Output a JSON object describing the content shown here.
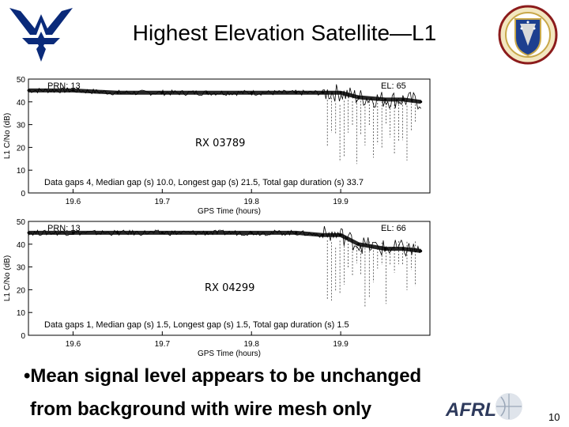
{
  "slide": {
    "title": "Highest Elevation Satellite—L1",
    "bullet_line1": "•Mean signal level appears to be unchanged",
    "bullet_line2": "from background with wire mesh only",
    "page_number": "10",
    "afrl_text": "AFRL"
  },
  "chart_data": [
    {
      "type": "line",
      "receiver_label": "RX 03789",
      "prn_label": "PRN: 13",
      "el_label": "EL: 65",
      "xlabel": "GPS Time (hours)",
      "ylabel": "L1 C/No (dB)",
      "xlim": [
        19.55,
        20.0
      ],
      "ylim": [
        0,
        50
      ],
      "xticks": [
        "19.6",
        "19.7",
        "19.8",
        "19.9"
      ],
      "yticks": [
        "0",
        "10",
        "20",
        "30",
        "40",
        "50"
      ],
      "stats_text": "Data gaps 4,  Median gap (s)  10.0,  Longest gap (s)  21.5,  Total gap duration (s)  33.7",
      "series": [
        {
          "x": [
            19.55,
            19.6,
            19.65,
            19.7,
            19.75,
            19.8,
            19.85,
            19.88,
            19.9,
            19.92,
            19.95,
            19.97,
            19.99
          ],
          "values": [
            45,
            45,
            44,
            44,
            44,
            44,
            44,
            44,
            44,
            42,
            41,
            41,
            40
          ]
        }
      ],
      "color": "#000000"
    },
    {
      "type": "line",
      "receiver_label": "RX 04299",
      "prn_label": "PRN: 13",
      "el_label": "EL: 66",
      "xlabel": "GPS Time (hours)",
      "ylabel": "L1 C/No (dB)",
      "xlim": [
        19.55,
        20.0
      ],
      "ylim": [
        0,
        50
      ],
      "xticks": [
        "19.6",
        "19.7",
        "19.8",
        "19.9"
      ],
      "yticks": [
        "0",
        "10",
        "20",
        "30",
        "40",
        "50"
      ],
      "stats_text": "Data gaps  1,  Median gap (s)  1.5,  Longest gap (s)  1.5,  Total gap duration (s)  1.5",
      "series": [
        {
          "x": [
            19.55,
            19.6,
            19.65,
            19.7,
            19.75,
            19.8,
            19.85,
            19.88,
            19.9,
            19.92,
            19.95,
            19.97,
            19.99
          ],
          "values": [
            45,
            45,
            45,
            45,
            45,
            45,
            45,
            44,
            44,
            40,
            38,
            38,
            37
          ]
        }
      ],
      "color": "#000000"
    }
  ]
}
